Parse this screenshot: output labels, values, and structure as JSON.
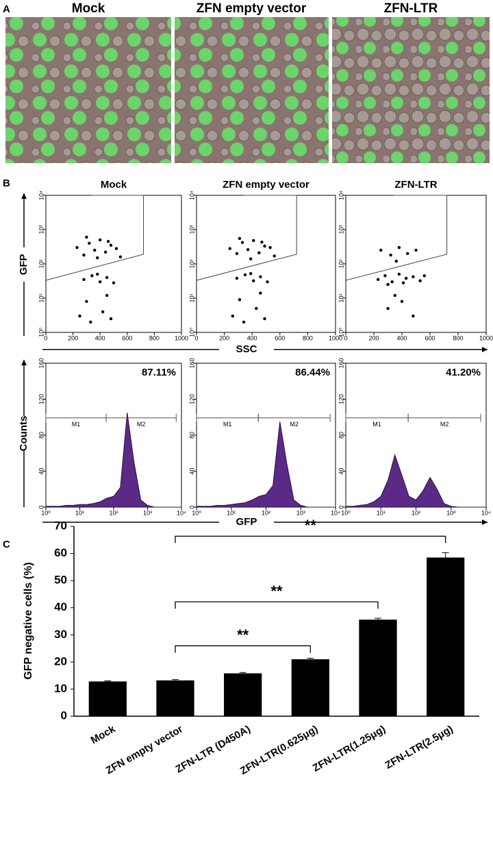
{
  "panel_labels": [
    "A",
    "B",
    "C"
  ],
  "image_titles": [
    "Mock",
    "ZFN empty vector",
    "ZFN-LTR"
  ],
  "flow_labels": {
    "scatter_x": "SSC",
    "scatter_y": "GFP",
    "hist_x": "GFP",
    "hist_y": "Counts"
  },
  "chart_data": [
    {
      "type": "scatter",
      "title": "Mock",
      "xlim": [
        0,
        1000
      ],
      "xticks": [
        0,
        200,
        400,
        600,
        800,
        1000
      ],
      "ylim": [
        1,
        10000
      ],
      "log_y": true,
      "yticks": [
        {
          "value": 1,
          "label": "10⁰"
        },
        {
          "value": 10,
          "label": "10¹"
        },
        {
          "value": 100,
          "label": "10²"
        },
        {
          "value": 1000,
          "label": "10³"
        },
        {
          "value": 10000,
          "label": "10⁴"
        }
      ],
      "color": "#000000",
      "x": [
        230,
        280,
        320,
        360,
        400,
        440,
        480,
        520,
        550,
        300,
        380,
        460,
        280,
        340,
        400,
        450,
        500,
        380,
        250,
        330,
        420,
        480,
        300,
        450
      ],
      "y": [
        300,
        180,
        400,
        250,
        500,
        220,
        350,
        280,
        160,
        600,
        150,
        450,
        35,
        45,
        30,
        40,
        28,
        50,
        3,
        2,
        4,
        2.5,
        8,
        12
      ]
    },
    {
      "type": "scatter",
      "title": "ZFN empty vector",
      "xlim": [
        0,
        1000
      ],
      "xticks": [
        0,
        200,
        400,
        600,
        800,
        1000
      ],
      "ylim": [
        1,
        10000
      ],
      "log_y": true,
      "yticks": [
        {
          "value": 1,
          "label": "10⁰"
        },
        {
          "value": 10,
          "label": "10¹"
        },
        {
          "value": 100,
          "label": "10²"
        },
        {
          "value": 1000,
          "label": "10³"
        },
        {
          "value": 10000,
          "label": "10⁴"
        }
      ],
      "color": "#000000",
      "x": [
        240,
        290,
        330,
        370,
        410,
        450,
        490,
        530,
        560,
        310,
        390,
        470,
        290,
        350,
        410,
        460,
        510,
        390,
        260,
        340,
        430,
        490,
        310,
        460
      ],
      "y": [
        280,
        200,
        420,
        260,
        480,
        210,
        330,
        300,
        170,
        550,
        140,
        430,
        38,
        48,
        32,
        42,
        30,
        52,
        3,
        2,
        5,
        2.5,
        9,
        14
      ]
    },
    {
      "type": "scatter",
      "title": "ZFN-LTR",
      "xlim": [
        0,
        1000
      ],
      "xticks": [
        0,
        200,
        400,
        600,
        800,
        1000
      ],
      "ylim": [
        1,
        10000
      ],
      "log_y": true,
      "yticks": [
        {
          "value": 1,
          "label": "10⁰"
        },
        {
          "value": 10,
          "label": "10¹"
        },
        {
          "value": 100,
          "label": "10²"
        },
        {
          "value": 1000,
          "label": "10³"
        },
        {
          "value": 10000,
          "label": "10⁴"
        }
      ],
      "color": "#000000",
      "x": [
        250,
        320,
        380,
        440,
        500,
        360,
        230,
        280,
        330,
        380,
        430,
        480,
        530,
        560,
        300,
        410,
        300,
        400,
        480,
        350
      ],
      "y": [
        250,
        180,
        300,
        200,
        250,
        120,
        35,
        45,
        30,
        50,
        38,
        42,
        32,
        45,
        25,
        28,
        5,
        8,
        3,
        12
      ]
    },
    {
      "type": "area",
      "xlim": [
        1,
        10000
      ],
      "log_x": true,
      "ylim": [
        0,
        160
      ],
      "yticks": [
        0,
        40,
        80,
        120,
        160
      ],
      "xticks": [
        {
          "value": 1,
          "label": "10⁰"
        },
        {
          "value": 10,
          "label": "10¹"
        },
        {
          "value": 100,
          "label": "10²"
        },
        {
          "value": 1000,
          "label": "10³"
        },
        {
          "value": 10000,
          "label": "10⁴"
        }
      ],
      "color": "#5b2a86",
      "percent": 87.11,
      "value_labels": "87.11%",
      "markers": [
        {
          "label": "M1",
          "range": [
            1,
            60
          ]
        },
        {
          "label": "M2",
          "range": [
            60,
            7000
          ]
        }
      ],
      "x": [
        1,
        1.6,
        2.5,
        4,
        6.3,
        10,
        16,
        25,
        40,
        63,
        100,
        158,
        251,
        398,
        631,
        1000,
        1585,
        2512,
        3981,
        6310,
        10000
      ],
      "values": [
        1,
        1,
        1,
        2,
        2,
        3,
        3,
        4,
        6,
        10,
        12,
        22,
        105,
        50,
        8,
        2,
        0,
        0,
        0,
        0,
        0
      ]
    },
    {
      "type": "area",
      "xlim": [
        1,
        10000
      ],
      "log_x": true,
      "ylim": [
        0,
        160
      ],
      "yticks": [
        0,
        40,
        80,
        120,
        160
      ],
      "xticks": [
        {
          "value": 1,
          "label": "10⁰"
        },
        {
          "value": 10,
          "label": "10¹"
        },
        {
          "value": 100,
          "label": "10²"
        },
        {
          "value": 1000,
          "label": "10³"
        },
        {
          "value": 10000,
          "label": "10⁴"
        }
      ],
      "color": "#5b2a86",
      "percent": 86.44,
      "value_labels": "86.44%",
      "markers": [
        {
          "label": "M1",
          "range": [
            1,
            60
          ]
        },
        {
          "label": "M2",
          "range": [
            60,
            7000
          ]
        }
      ],
      "x": [
        1,
        1.6,
        2.5,
        4,
        6.3,
        10,
        16,
        25,
        40,
        63,
        100,
        158,
        251,
        398,
        631,
        1000,
        1585,
        2512,
        3981,
        6310,
        10000
      ],
      "values": [
        1,
        1,
        1,
        2,
        2,
        3,
        4,
        5,
        8,
        12,
        14,
        24,
        95,
        48,
        8,
        2,
        0,
        0,
        0,
        0,
        0
      ]
    },
    {
      "type": "area",
      "xlim": [
        1,
        10000
      ],
      "log_x": true,
      "ylim": [
        0,
        160
      ],
      "yticks": [
        0,
        40,
        80,
        120,
        160
      ],
      "xticks": [
        {
          "value": 1,
          "label": "10⁰"
        },
        {
          "value": 10,
          "label": "10¹"
        },
        {
          "value": 100,
          "label": "10²"
        },
        {
          "value": 1000,
          "label": "10³"
        },
        {
          "value": 10000,
          "label": "10⁴"
        }
      ],
      "color": "#5b2a86",
      "percent": 41.2,
      "value_labels": "41.20%",
      "markers": [
        {
          "label": "M1",
          "range": [
            1,
            60
          ]
        },
        {
          "label": "M2",
          "range": [
            60,
            7000
          ]
        }
      ],
      "x": [
        1,
        1.6,
        2.5,
        4,
        6.3,
        10,
        16,
        25,
        40,
        63,
        100,
        158,
        251,
        398,
        631,
        1000,
        1585,
        2512,
        3981,
        6310,
        10000
      ],
      "values": [
        1,
        1,
        2,
        3,
        6,
        12,
        30,
        58,
        35,
        12,
        8,
        18,
        33,
        20,
        4,
        1,
        0,
        0,
        0,
        0,
        0
      ]
    },
    {
      "type": "bar",
      "y_label": "GFP negative cells (%)",
      "color": "#000000",
      "categories": [
        "Mock",
        "ZFN empty vector",
        "ZFN-LTR (D450A)",
        "ZFN-LTR(0.625μg)",
        "ZFN-LTR(1.25μg)",
        "ZFN-LTR(2.5μg)"
      ],
      "values": [
        12.8,
        13.2,
        15.8,
        21.0,
        35.6,
        58.5
      ],
      "errors": [
        0.2,
        0.3,
        0.3,
        0.4,
        0.5,
        1.8
      ],
      "ylim": [
        0,
        70
      ],
      "yticks": [
        0,
        10,
        20,
        30,
        40,
        50,
        60,
        70
      ],
      "significance": [
        {
          "from": 1,
          "to": 3,
          "label": "**"
        },
        {
          "from": 1,
          "to": 4,
          "label": "**"
        },
        {
          "from": 1,
          "to": 5,
          "label": "**"
        }
      ]
    }
  ]
}
